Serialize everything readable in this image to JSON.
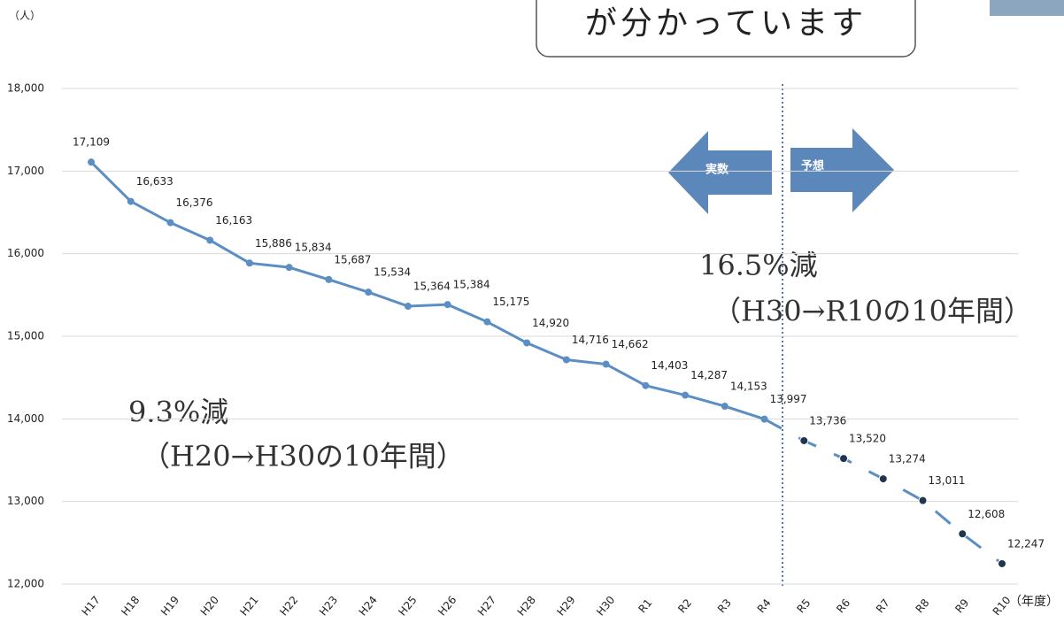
{
  "chart_data": {
    "type": "line",
    "title": "が分かっています",
    "y_axis_label": "（人）",
    "x_axis_label": "（年度）",
    "categories": [
      "H17",
      "H18",
      "H19",
      "H20",
      "H21",
      "H22",
      "H23",
      "H24",
      "H25",
      "H26",
      "H27",
      "H28",
      "H29",
      "H30",
      "R1",
      "R2",
      "R3",
      "R4",
      "R5",
      "R6",
      "R7",
      "R8",
      "R9",
      "R10"
    ],
    "values": [
      17109,
      16633,
      16376,
      16163,
      15886,
      15834,
      15687,
      15534,
      15364,
      15384,
      15175,
      14920,
      14716,
      14662,
      14403,
      14287,
      14153,
      13997,
      13736,
      13520,
      13274,
      13011,
      12608,
      12247
    ],
    "value_labels": [
      "17,109",
      "16,633",
      "16,376",
      "16,163",
      "15,886",
      "15,834",
      "15,687",
      "15,534",
      "15,364",
      "15,384",
      "15,175",
      "14,920",
      "14,716",
      "14,662",
      "14,403",
      "14,287",
      "14,153",
      "13,997",
      "13,736",
      "13,520",
      "13,274",
      "13,011",
      "12,608",
      "12,247"
    ],
    "color": "#5b8ec4",
    "forecast_marker_color": "#1f3550",
    "ylim": [
      12000,
      18000
    ],
    "yticks": [
      {
        "value": 12000,
        "label": "12,000"
      },
      {
        "value": 13000,
        "label": "13,000"
      },
      {
        "value": 14000,
        "label": "14,000"
      },
      {
        "value": 15000,
        "label": "15,000"
      },
      {
        "value": 16000,
        "label": "16,000"
      },
      {
        "value": 17000,
        "label": "17,000"
      },
      {
        "value": 18000,
        "label": "18,000"
      }
    ],
    "grid": true,
    "annotations": {
      "actual": "実数",
      "forecast": "予想",
      "past_change": "9.3%減",
      "past_period": "（H20→H30の10年間）",
      "future_change": "16.5%減",
      "future_period": "（H30→R10の10年間）"
    }
  }
}
